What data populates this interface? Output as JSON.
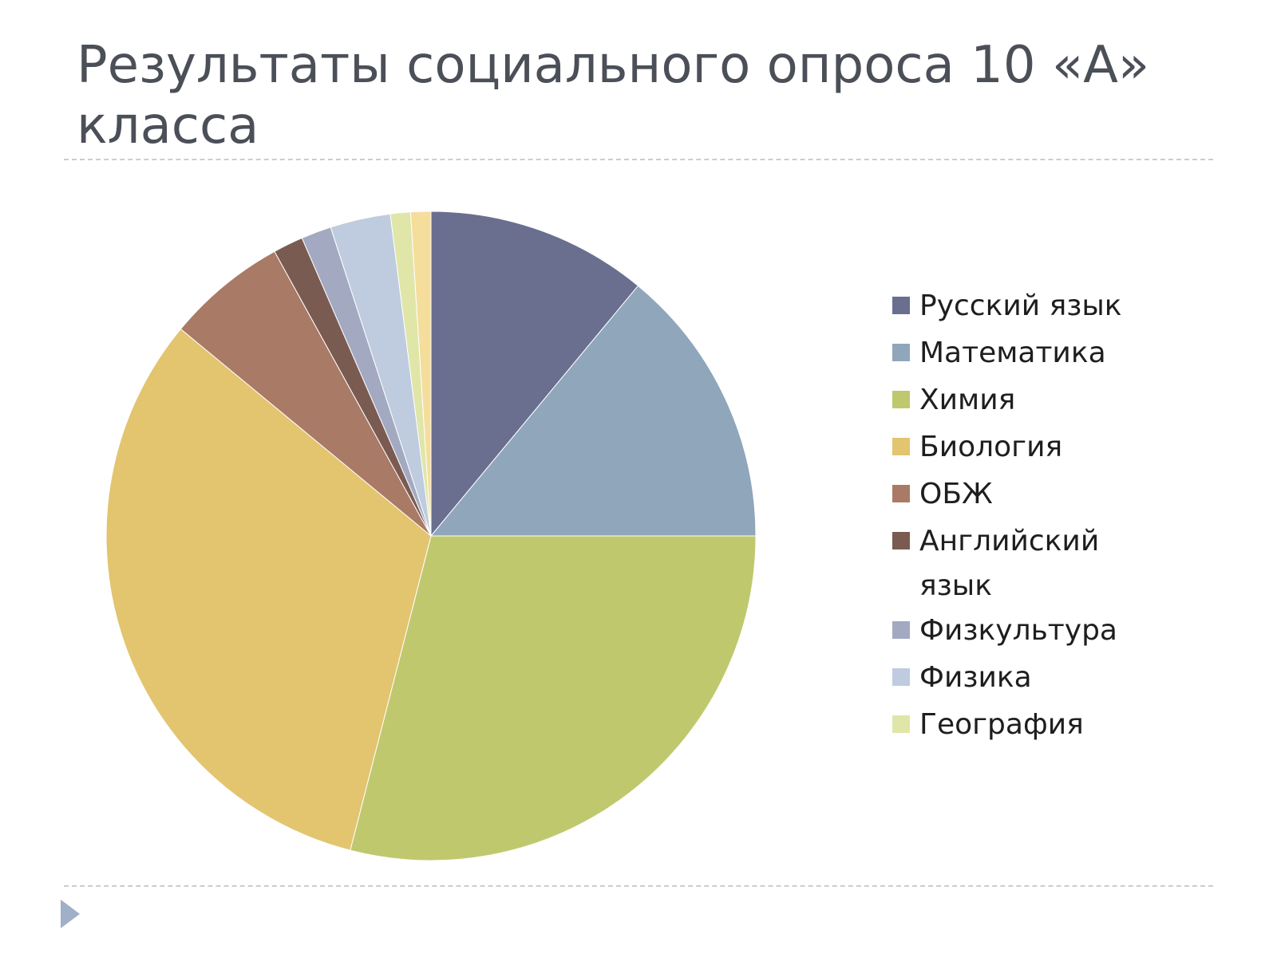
{
  "slide": {
    "title": "Результаты социального опроса 10 «А» класса"
  },
  "chart_data": {
    "type": "pie",
    "title": "Результаты социального опроса 10 «А» класса",
    "legend_position": "right",
    "categories": [
      "Русский язык",
      "Математика",
      "Химия",
      "Биология",
      "ОБЖ",
      "Английский язык",
      "Физкультура",
      "Физика",
      "География",
      ""
    ],
    "values": [
      11,
      14,
      29,
      32,
      6,
      1.5,
      1.5,
      3,
      1,
      1
    ],
    "colors": [
      "#6a6f90",
      "#8fa6bb",
      "#c0c86e",
      "#e3c46f",
      "#a97a66",
      "#7a5b52",
      "#a3a9c0",
      "#bfccdf",
      "#dfe6a8",
      "#f5dd9c"
    ]
  }
}
